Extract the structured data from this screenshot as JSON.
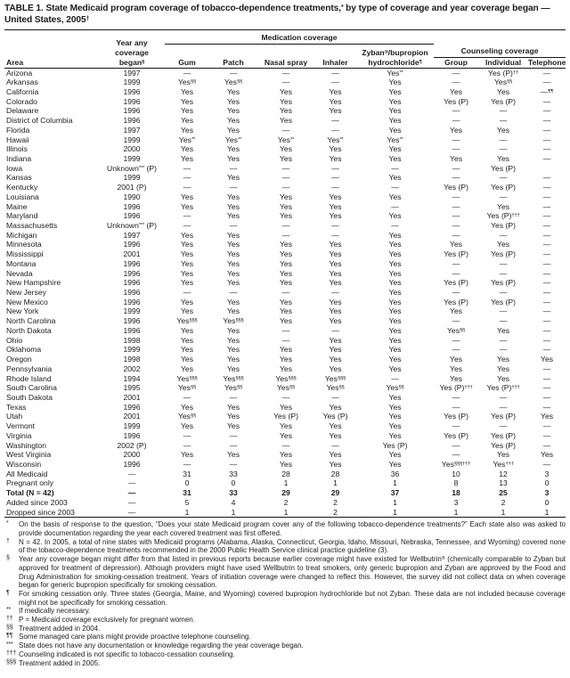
{
  "title": "TABLE 1. State Medicaid program coverage of tobacco-dependence treatments,* by type of coverage and year coverage began — United States, 2005†",
  "colors": {
    "ink": "#1c1c1c",
    "paper": "#ffffff"
  },
  "header": {
    "area": "Area",
    "year": "Year any coverage began§",
    "medication_group": "Medication coverage",
    "counseling_group": "Counseling coverage",
    "gum": "Gum",
    "patch": "Patch",
    "nasal_spray": "Nasal spray",
    "inhaler": "Inhaler",
    "zyban": "Zyban®/bupropion hydrochloride¶",
    "group": "Group",
    "individual": "Individual",
    "telephone": "Telephone"
  },
  "rows": [
    {
      "area": "Arizona",
      "year": "1997",
      "cells": [
        "—",
        "—",
        "—",
        "—",
        "Yes**",
        "—",
        "Yes (P)††",
        "—"
      ]
    },
    {
      "area": "Arkansas",
      "year": "1999",
      "cells": [
        "Yes§§",
        "Yes§§",
        "—",
        "—",
        "Yes",
        "—",
        "Yes§§",
        "—"
      ]
    },
    {
      "area": "California",
      "year": "1996",
      "cells": [
        "Yes",
        "Yes",
        "Yes",
        "Yes",
        "Yes",
        "Yes",
        "Yes",
        "—¶¶"
      ]
    },
    {
      "area": "Colorado",
      "year": "1996",
      "cells": [
        "Yes",
        "Yes",
        "Yes",
        "Yes",
        "Yes",
        "Yes (P)",
        "Yes (P)",
        "—"
      ]
    },
    {
      "area": "Delaware",
      "year": "1996",
      "cells": [
        "Yes",
        "Yes",
        "Yes",
        "Yes",
        "Yes",
        "—",
        "—",
        "—"
      ]
    },
    {
      "area": "District of Columbia",
      "year": "1996",
      "cells": [
        "Yes",
        "Yes",
        "Yes",
        "—",
        "Yes",
        "—",
        "—",
        "—"
      ]
    },
    {
      "area": "Florida",
      "year": "1997",
      "cells": [
        "Yes",
        "Yes",
        "—",
        "—",
        "Yes",
        "Yes",
        "Yes",
        "—"
      ]
    },
    {
      "area": "Hawaii",
      "year": "1999",
      "cells": [
        "Yes**",
        "Yes**",
        "Yes**",
        "Yes**",
        "Yes**",
        "—",
        "—",
        "—"
      ]
    },
    {
      "area": "Illinois",
      "year": "2000",
      "cells": [
        "Yes",
        "Yes",
        "Yes",
        "Yes",
        "Yes",
        "—",
        "—",
        "—"
      ]
    },
    {
      "area": "Indiana",
      "year": "1999",
      "cells": [
        "Yes",
        "Yes",
        "Yes",
        "Yes",
        "Yes",
        "Yes",
        "Yes",
        "—"
      ]
    },
    {
      "area": "Iowa",
      "year": "Unknown*** (P)",
      "cells": [
        "—",
        "—",
        "—",
        "—",
        "—",
        "—",
        "Yes (P)",
        ""
      ]
    },
    {
      "area": "Kansas",
      "year": "1999",
      "cells": [
        "—",
        "Yes",
        "—",
        "—",
        "Yes",
        "—",
        "—",
        "—"
      ]
    },
    {
      "area": "Kentucky",
      "year": "2001 (P)",
      "cells": [
        "—",
        "—",
        "—",
        "—",
        "—",
        "Yes (P)",
        "Yes (P)",
        "—"
      ]
    },
    {
      "area": "Louisiana",
      "year": "1990",
      "cells": [
        "Yes",
        "Yes",
        "Yes",
        "Yes",
        "Yes",
        "—",
        "—",
        "—"
      ]
    },
    {
      "area": "Maine",
      "year": "1996",
      "cells": [
        "Yes",
        "Yes",
        "Yes",
        "Yes",
        "—",
        "—",
        "Yes",
        "—"
      ]
    },
    {
      "area": "Maryland",
      "year": "1996",
      "cells": [
        "—",
        "Yes",
        "Yes",
        "Yes",
        "Yes",
        "—",
        "Yes (P)†††",
        "—"
      ]
    },
    {
      "area": "Massachusetts",
      "year": "Unknown*** (P)",
      "cells": [
        "—",
        "—",
        "—",
        "—",
        "—",
        "—",
        "Yes (P)",
        "—"
      ]
    },
    {
      "area": "Michigan",
      "year": "1997",
      "cells": [
        "Yes",
        "Yes",
        "—",
        "—",
        "Yes",
        "—",
        "—",
        "—"
      ]
    },
    {
      "area": "Minnesota",
      "year": "1996",
      "cells": [
        "Yes",
        "Yes",
        "Yes",
        "Yes",
        "Yes",
        "Yes",
        "Yes",
        "—"
      ]
    },
    {
      "area": "Mississippi",
      "year": "2001",
      "cells": [
        "Yes",
        "Yes",
        "Yes",
        "Yes",
        "Yes",
        "Yes (P)",
        "Yes (P)",
        "—"
      ]
    },
    {
      "area": "Montana",
      "year": "1996",
      "cells": [
        "Yes",
        "Yes",
        "Yes",
        "Yes",
        "Yes",
        "—",
        "—",
        "—"
      ]
    },
    {
      "area": "Nevada",
      "year": "1996",
      "cells": [
        "Yes",
        "Yes",
        "Yes",
        "Yes",
        "Yes",
        "—",
        "—",
        "—"
      ]
    },
    {
      "area": "New Hampshire",
      "year": "1996",
      "cells": [
        "Yes",
        "Yes",
        "Yes",
        "Yes",
        "Yes",
        "Yes (P)",
        "Yes (P)",
        "—"
      ]
    },
    {
      "area": "New Jersey",
      "year": "1996",
      "cells": [
        "—",
        "—",
        "—",
        "—",
        "Yes",
        "—",
        "—",
        "—"
      ]
    },
    {
      "area": "New Mexico",
      "year": "1996",
      "cells": [
        "Yes",
        "Yes",
        "Yes",
        "Yes",
        "Yes",
        "Yes (P)",
        "Yes (P)",
        "—"
      ]
    },
    {
      "area": "New York",
      "year": "1999",
      "cells": [
        "Yes",
        "Yes",
        "Yes",
        "Yes",
        "Yes",
        "Yes",
        "—",
        "—"
      ]
    },
    {
      "area": "North Carolina",
      "year": "1996",
      "cells": [
        "Yes§§§",
        "Yes§§§",
        "Yes",
        "Yes",
        "Yes",
        "—",
        "—",
        "—"
      ]
    },
    {
      "area": "North Dakota",
      "year": "1996",
      "cells": [
        "Yes",
        "Yes",
        "—",
        "—",
        "Yes",
        "Yes§§",
        "Yes",
        "—"
      ]
    },
    {
      "area": "Ohio",
      "year": "1998",
      "cells": [
        "Yes",
        "Yes",
        "—",
        "Yes",
        "Yes",
        "—",
        "—",
        "—"
      ]
    },
    {
      "area": "Oklahoma",
      "year": "1999",
      "cells": [
        "Yes",
        "Yes",
        "Yes",
        "Yes",
        "Yes",
        "—",
        "—",
        "—"
      ]
    },
    {
      "area": "Oregon",
      "year": "1998",
      "cells": [
        "Yes",
        "Yes",
        "Yes",
        "Yes",
        "Yes",
        "Yes",
        "Yes",
        "Yes"
      ]
    },
    {
      "area": "Pennsylvania",
      "year": "2002",
      "cells": [
        "Yes",
        "Yes",
        "Yes",
        "Yes",
        "Yes",
        "Yes",
        "Yes",
        "—"
      ]
    },
    {
      "area": "Rhode Island",
      "year": "1994",
      "cells": [
        "Yes§§§",
        "Yes§§§",
        "Yes§§§",
        "Yes§§§",
        "—",
        "Yes",
        "Yes",
        "—"
      ]
    },
    {
      "area": "South Carolina",
      "year": "1995",
      "cells": [
        "Yes§§",
        "Yes§§",
        "Yes§§",
        "Yes§§",
        "Yes§§",
        "Yes (P)†††",
        "Yes (P)†††",
        "—"
      ]
    },
    {
      "area": "South Dakota",
      "year": "2001",
      "cells": [
        "—",
        "—",
        "—",
        "—",
        "Yes",
        "—",
        "—",
        "—"
      ]
    },
    {
      "area": "Texas",
      "year": "1996",
      "cells": [
        "Yes",
        "Yes",
        "Yes",
        "Yes",
        "Yes",
        "—",
        "—",
        "—"
      ]
    },
    {
      "area": "Utah",
      "year": "2001",
      "cells": [
        "Yes§§",
        "Yes",
        "Yes (P)",
        "Yes (P)",
        "Yes",
        "Yes (P)",
        "Yes (P)",
        "Yes"
      ]
    },
    {
      "area": "Vermont",
      "year": "1999",
      "cells": [
        "Yes",
        "Yes",
        "Yes",
        "Yes",
        "Yes",
        "—",
        "—",
        "—"
      ]
    },
    {
      "area": "Virginia",
      "year": "1996",
      "cells": [
        "—",
        "—",
        "Yes",
        "Yes",
        "Yes",
        "Yes (P)",
        "Yes (P)",
        "—"
      ]
    },
    {
      "area": "Washington",
      "year": "2002 (P)",
      "cells": [
        "—",
        "—",
        "—",
        "—",
        "Yes (P)",
        "—",
        "Yes (P)",
        "—"
      ]
    },
    {
      "area": "West Virginia",
      "year": "2000",
      "cells": [
        "Yes",
        "Yes",
        "Yes",
        "Yes",
        "Yes",
        "—",
        "Yes",
        "Yes"
      ]
    },
    {
      "area": "Wisconsin",
      "year": "1996",
      "cells": [
        "—",
        "—",
        "Yes",
        "Yes",
        "Yes",
        "Yes§§§†††",
        "Yes†††",
        "—"
      ]
    }
  ],
  "summary_rows": [
    {
      "area": "All Medicaid",
      "year": "—",
      "bold": false,
      "cells": [
        "31",
        "33",
        "28",
        "28",
        "36",
        "10",
        "12",
        "3"
      ]
    },
    {
      "area": "Pregnant only",
      "year": "—",
      "bold": false,
      "cells": [
        "0",
        "0",
        "1",
        "1",
        "1",
        "8",
        "13",
        "0"
      ]
    },
    {
      "area": "Total (N = 42)",
      "year": "—",
      "bold": true,
      "cells": [
        "31",
        "33",
        "29",
        "29",
        "37",
        "18",
        "25",
        "3"
      ]
    },
    {
      "area": "Added since 2003",
      "year": "—",
      "bold": false,
      "cells": [
        "5",
        "4",
        "2",
        "2",
        "1",
        "3",
        "2",
        "0"
      ]
    },
    {
      "area": "Dropped since 2003",
      "year": "—",
      "bold": false,
      "cells": [
        "1",
        "1",
        "1",
        "2",
        "1",
        "1",
        "1",
        "1"
      ]
    }
  ],
  "footnotes": [
    {
      "marker": "*",
      "text": "On the basis of response to the question, “Does your state Medicaid program cover any of the following tobacco-dependence treatments?” Each state also was asked to provide documentation regarding the year each covered treatment was first offered."
    },
    {
      "marker": "†",
      "text": "N = 42. In 2005, a total of nine states with Medicaid programs (Alabama, Alaska, Connecticut, Georgia, Idaho, Missouri, Nebraska, Tennessee, and Wyoming) covered none of the tobacco-dependence treatments recommended in the 2000 Public Health Service clinical practice guideline (3)."
    },
    {
      "marker": "§",
      "text": "Year any coverage began might differ from that listed in previous reports because earlier coverage might have existed for Wellbutrin® (chemically comparable to Zyban but approved for treatment of depression). Although providers might have used Wellbutrin to treat smokers, only generic bupropion and Zyban are approved by the Food and Drug Administration for smoking-cessation treatment. Years of initiation coverage were changed to reflect this. However, the survey did not collect data on when coverage began for generic bupropion specifically for smoking cessation."
    },
    {
      "marker": "¶",
      "text": "For smoking cessation only. Three states (Georgia, Maine, and Wyoming) covered bupropion hydrochloride but not Zyban. These data are not included because coverage might not be specifically for smoking cessation."
    },
    {
      "marker": "**",
      "text": "If medically necessary."
    },
    {
      "marker": "††",
      "text": "P = Medicaid coverage exclusively for pregnant women."
    },
    {
      "marker": "§§",
      "text": "Treatment added in 2004."
    },
    {
      "marker": "¶¶",
      "text": "Some managed care plans might provide proactive telephone counseling."
    },
    {
      "marker": "***",
      "text": "State does not have any documentation or knowledge regarding the year coverage began."
    },
    {
      "marker": "†††",
      "text": "Counseling indicated is not specific to tobacco-cessation counseling."
    },
    {
      "marker": "§§§",
      "text": "Treatment added in 2005."
    }
  ]
}
